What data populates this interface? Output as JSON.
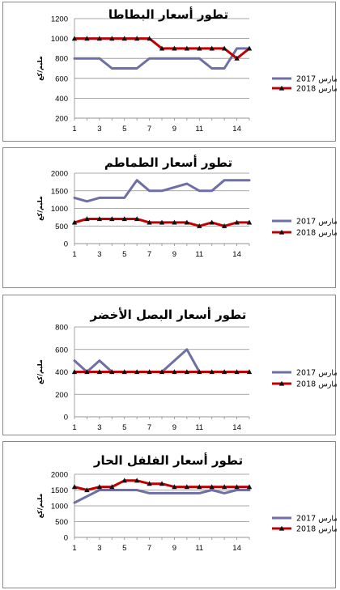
{
  "chart_data": [
    {
      "type": "line",
      "title": "تطور أسعار البطاطا",
      "ylabel": "مليم/كغ",
      "ylim": [
        200,
        1200
      ],
      "yticks": [
        "200",
        "400",
        "600",
        "800",
        "1000",
        "1200"
      ],
      "x": [
        1,
        2,
        3,
        4,
        5,
        6,
        7,
        8,
        9,
        10,
        11,
        12,
        13,
        14,
        15
      ],
      "xtick_labels": [
        "1",
        "3",
        "5",
        "7",
        "9",
        "11",
        "14"
      ],
      "grid": true,
      "legend_position": "right",
      "series": [
        {
          "name": "مارس 2017",
          "color": "#6e6fa6",
          "marker": "none",
          "values": [
            800,
            800,
            800,
            700,
            700,
            700,
            800,
            800,
            800,
            800,
            800,
            700,
            700,
            900,
            900
          ]
        },
        {
          "name": "مارس 2018",
          "color": "#c00000",
          "marker": "triangle",
          "values": [
            1000,
            1000,
            1000,
            1000,
            1000,
            1000,
            1000,
            900,
            900,
            900,
            900,
            900,
            900,
            800,
            900
          ]
        }
      ]
    },
    {
      "type": "line",
      "title": "تطور أسعار الطماطم",
      "ylabel": "مليم/كغ",
      "ylim": [
        0,
        2000
      ],
      "yticks": [
        "0",
        "500",
        "1000",
        "1500",
        "2000"
      ],
      "x": [
        1,
        2,
        3,
        4,
        5,
        6,
        7,
        8,
        9,
        10,
        11,
        12,
        13,
        14,
        15
      ],
      "xtick_labels": [
        "1",
        "3",
        "5",
        "7",
        "9",
        "11",
        "14"
      ],
      "grid": true,
      "legend_position": "right",
      "series": [
        {
          "name": "مارس 2017",
          "color": "#6e6fa6",
          "marker": "none",
          "values": [
            1300,
            1200,
            1300,
            1300,
            1300,
            1800,
            1500,
            1500,
            1600,
            1700,
            1500,
            1500,
            1800,
            1800,
            1800
          ]
        },
        {
          "name": "مارس 2018",
          "color": "#c00000",
          "marker": "triangle",
          "values": [
            600,
            700,
            700,
            700,
            700,
            700,
            600,
            600,
            600,
            600,
            500,
            600,
            500,
            600,
            600
          ]
        }
      ]
    },
    {
      "type": "line",
      "title": "تطور أسعار البصل الأخضر",
      "ylabel": "مليم/كغ",
      "ylim": [
        0,
        800
      ],
      "yticks": [
        "0",
        "200",
        "400",
        "600",
        "800"
      ],
      "x": [
        1,
        2,
        3,
        4,
        5,
        6,
        7,
        8,
        9,
        10,
        11,
        12,
        13,
        14,
        15
      ],
      "xtick_labels": [
        "1",
        "3",
        "5",
        "7",
        "9",
        "11",
        "14"
      ],
      "grid": true,
      "legend_position": "right",
      "series": [
        {
          "name": "مارس 2017",
          "color": "#6e6fa6",
          "marker": "none",
          "values": [
            500,
            400,
            500,
            400,
            400,
            400,
            400,
            400,
            500,
            600,
            400,
            400,
            400,
            400,
            400
          ]
        },
        {
          "name": "مارس 2018",
          "color": "#c00000",
          "marker": "triangle",
          "values": [
            400,
            400,
            400,
            400,
            400,
            400,
            400,
            400,
            400,
            400,
            400,
            400,
            400,
            400,
            400
          ]
        }
      ]
    },
    {
      "type": "line",
      "title": "تطور أسعار الفلفل الحار",
      "ylabel": "مليم/كغ",
      "ylim": [
        0,
        2000
      ],
      "yticks": [
        "0",
        "500",
        "1000",
        "1500",
        "2000"
      ],
      "x": [
        1,
        2,
        3,
        4,
        5,
        6,
        7,
        8,
        9,
        10,
        11,
        12,
        13,
        14,
        15
      ],
      "xtick_labels": [
        "1",
        "3",
        "5",
        "7",
        "9",
        "11",
        "14"
      ],
      "grid": true,
      "legend_position": "right",
      "series": [
        {
          "name": "مارس 2017",
          "color": "#6e6fa6",
          "marker": "none",
          "values": [
            1100,
            1300,
            1500,
            1500,
            1500,
            1500,
            1400,
            1400,
            1400,
            1400,
            1400,
            1500,
            1400,
            1500,
            1500
          ]
        },
        {
          "name": "مارس 2018",
          "color": "#c00000",
          "marker": "triangle",
          "values": [
            1600,
            1500,
            1600,
            1600,
            1800,
            1800,
            1700,
            1700,
            1600,
            1600,
            1600,
            1600,
            1600,
            1600,
            1600
          ]
        }
      ]
    }
  ]
}
